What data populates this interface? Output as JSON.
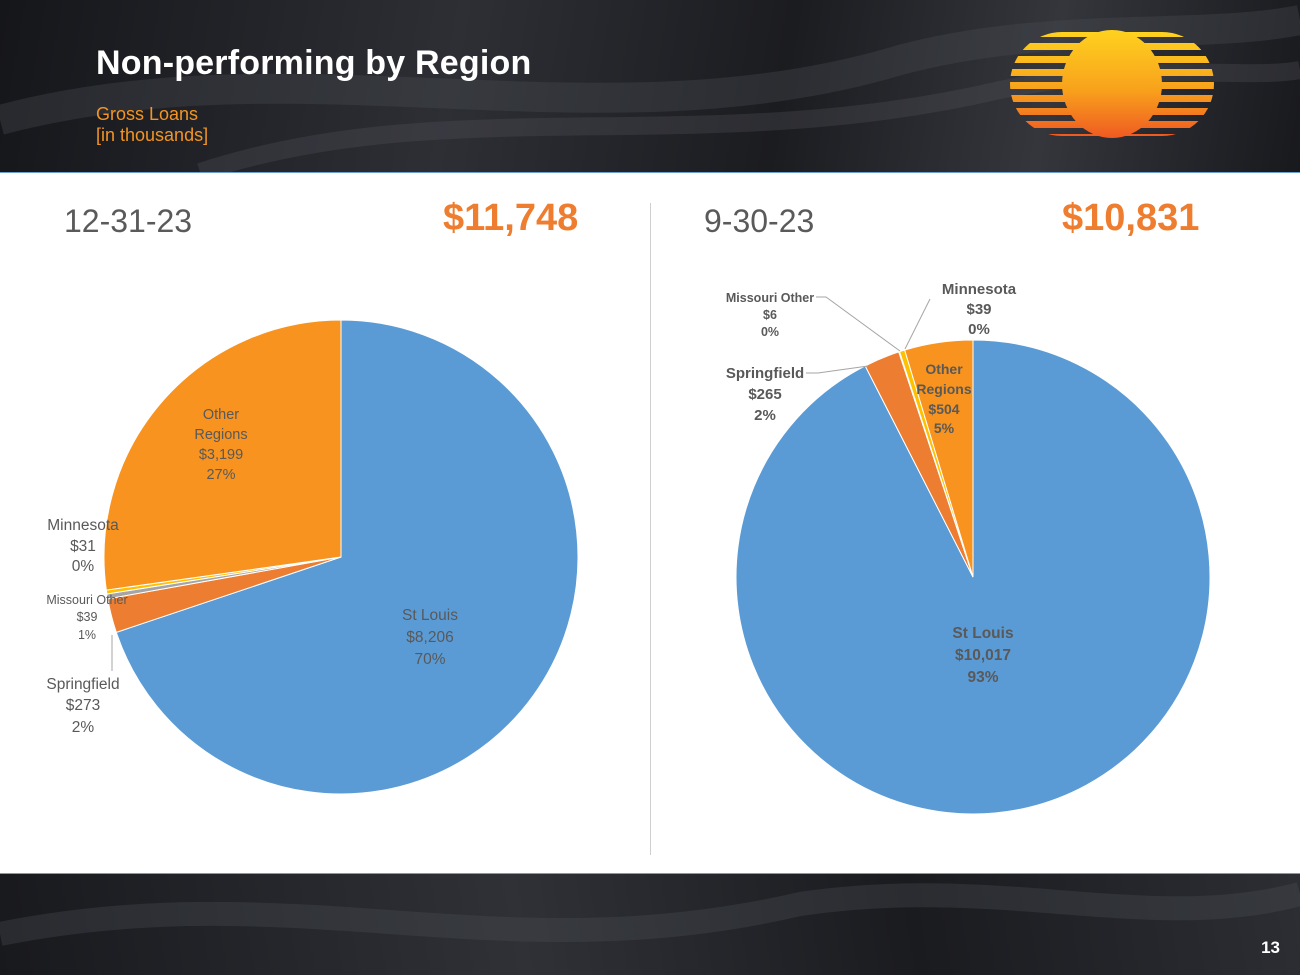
{
  "slide": {
    "title": "Non-performing by Region",
    "subtitle_line1": "Gross Loans",
    "subtitle_line2": "[in thousands]",
    "page_number": "13"
  },
  "colors": {
    "st_louis": "#5b9bd5",
    "springfield": "#ed7d31",
    "missouri_other": "#a5a5a5",
    "minnesota": "#ffc000",
    "other_regions": "#f7931e",
    "accent": "#ef7d2f"
  },
  "chart_data": [
    {
      "type": "pie",
      "period": "12-31-23",
      "total_label": "$11,748",
      "slices": [
        {
          "name": "St Louis",
          "value_label": "$8,206",
          "pct_label": "70%",
          "value": 8206
        },
        {
          "name": "Springfield",
          "value_label": "$273",
          "pct_label": "2%",
          "value": 273
        },
        {
          "name": "Missouri Other",
          "value_label": "$39",
          "pct_label": "1%",
          "value": 39
        },
        {
          "name": "Minnesota",
          "value_label": "$31",
          "pct_label": "0%",
          "value": 31
        },
        {
          "name": "Other Regions",
          "value_label": "$3,199",
          "pct_label": "27%",
          "value": 3199
        }
      ]
    },
    {
      "type": "pie",
      "period": "9-30-23",
      "total_label": "$10,831",
      "slices": [
        {
          "name": "St Louis",
          "value_label": "$10,017",
          "pct_label": "93%",
          "value": 10017
        },
        {
          "name": "Springfield",
          "value_label": "$265",
          "pct_label": "2%",
          "value": 265
        },
        {
          "name": "Missouri Other",
          "value_label": "$6",
          "pct_label": "0%",
          "value": 6
        },
        {
          "name": "Minnesota",
          "value_label": "$39",
          "pct_label": "0%",
          "value": 39
        },
        {
          "name": "Other Regions",
          "value_label": "$504",
          "pct_label": "5%",
          "value": 504
        }
      ]
    }
  ]
}
